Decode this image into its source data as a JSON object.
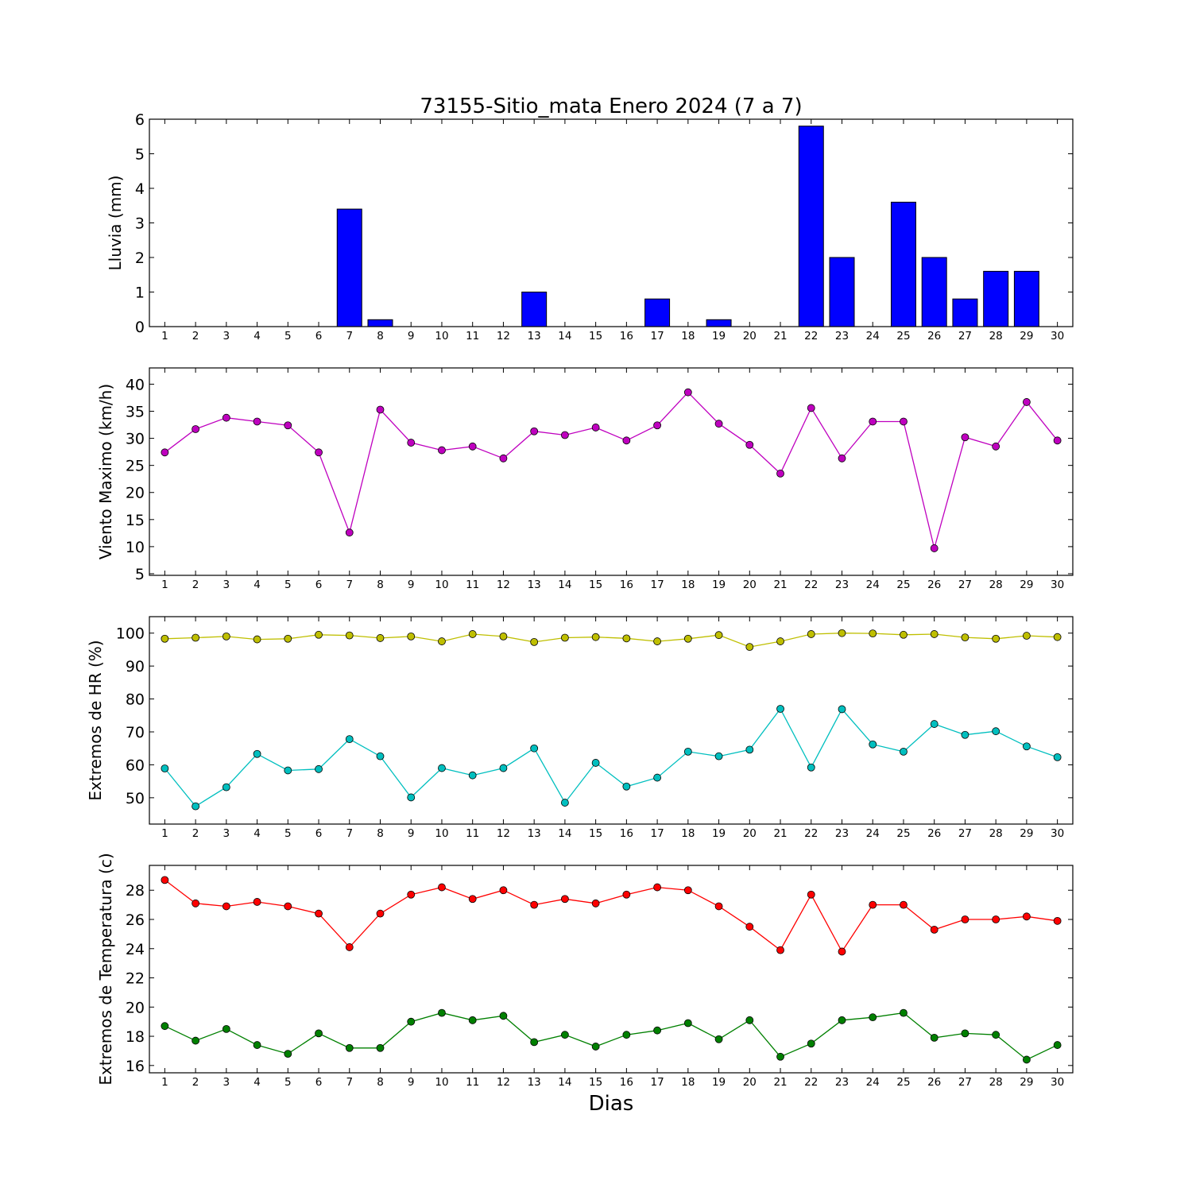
{
  "title": "73155-Sitio_mata Enero 2024  (7 a 7)",
  "xlabel": "Dias",
  "chart_data": [
    {
      "type": "bar",
      "ylabel": "Lluvia (mm)",
      "ylim": [
        0,
        6
      ],
      "yticks": [
        0,
        1,
        2,
        3,
        4,
        5,
        6
      ],
      "xlim": [
        0.5,
        30.5
      ],
      "categories": [
        "1",
        "2",
        "3",
        "4",
        "5",
        "6",
        "7",
        "8",
        "9",
        "10",
        "11",
        "12",
        "13",
        "14",
        "15",
        "16",
        "17",
        "18",
        "19",
        "20",
        "21",
        "22",
        "23",
        "24",
        "25",
        "26",
        "27",
        "28",
        "29",
        "30"
      ],
      "series": [
        {
          "color": "#0000ff",
          "values": [
            0,
            0,
            0,
            0,
            0,
            0,
            3.4,
            0.2,
            0,
            0,
            0,
            0,
            1.0,
            0,
            0,
            0,
            0.8,
            0,
            0.2,
            0,
            0,
            5.8,
            2.0,
            0,
            3.6,
            2.0,
            0.8,
            1.6,
            1.6,
            0
          ]
        }
      ]
    },
    {
      "type": "line",
      "ylabel": "Viento Maximo (km/h)",
      "ylim": [
        4.7,
        43
      ],
      "yticks": [
        5,
        10,
        15,
        20,
        25,
        30,
        35,
        40
      ],
      "xlim": [
        0.5,
        30.5
      ],
      "categories": [
        "1",
        "2",
        "3",
        "4",
        "5",
        "6",
        "7",
        "8",
        "9",
        "10",
        "11",
        "12",
        "13",
        "14",
        "15",
        "16",
        "17",
        "18",
        "19",
        "20",
        "21",
        "22",
        "23",
        "24",
        "25",
        "26",
        "27",
        "28",
        "29",
        "30"
      ],
      "series": [
        {
          "color": "#bf00bf",
          "values": [
            27.4,
            31.7,
            33.8,
            33.1,
            32.4,
            27.4,
            12.6,
            35.3,
            29.2,
            27.8,
            28.5,
            26.3,
            31.3,
            30.6,
            32.0,
            29.6,
            32.4,
            38.5,
            32.7,
            28.8,
            23.5,
            35.6,
            26.3,
            33.1,
            33.1,
            9.7,
            30.2,
            28.5,
            36.7,
            29.6
          ]
        }
      ]
    },
    {
      "type": "line",
      "ylabel": "Extremos de HR (%)",
      "ylim": [
        42,
        105
      ],
      "yticks": [
        50,
        60,
        70,
        80,
        90,
        100
      ],
      "xlim": [
        0.5,
        30.5
      ],
      "categories": [
        "1",
        "2",
        "3",
        "4",
        "5",
        "6",
        "7",
        "8",
        "9",
        "10",
        "11",
        "12",
        "13",
        "14",
        "15",
        "16",
        "17",
        "18",
        "19",
        "20",
        "21",
        "22",
        "23",
        "24",
        "25",
        "26",
        "27",
        "28",
        "29",
        "30"
      ],
      "series": [
        {
          "color": "#bfbf00",
          "values": [
            98.3,
            98.6,
            99.0,
            98.1,
            98.3,
            99.5,
            99.3,
            98.5,
            99.0,
            97.5,
            99.7,
            99.0,
            97.3,
            98.6,
            98.8,
            98.4,
            97.5,
            98.3,
            99.4,
            95.8,
            97.5,
            99.7,
            100.0,
            99.9,
            99.5,
            99.7,
            98.7,
            98.3,
            99.2,
            98.8
          ]
        },
        {
          "color": "#00bfbf",
          "values": [
            58.9,
            47.4,
            53.2,
            63.3,
            58.3,
            58.7,
            67.8,
            62.6,
            50.1,
            59.0,
            56.8,
            59.0,
            65.0,
            48.5,
            60.6,
            53.4,
            56.1,
            64.0,
            62.6,
            64.6,
            77.0,
            59.2,
            76.9,
            66.2,
            64.0,
            72.4,
            69.1,
            70.2,
            65.6,
            62.3
          ]
        }
      ]
    },
    {
      "type": "line",
      "ylabel": "Extremos de Temperatura (c)",
      "ylim": [
        15.5,
        29.7
      ],
      "yticks": [
        16,
        18,
        20,
        22,
        24,
        26,
        28
      ],
      "xlim": [
        0.5,
        30.5
      ],
      "categories": [
        "1",
        "2",
        "3",
        "4",
        "5",
        "6",
        "7",
        "8",
        "9",
        "10",
        "11",
        "12",
        "13",
        "14",
        "15",
        "16",
        "17",
        "18",
        "19",
        "20",
        "21",
        "22",
        "23",
        "24",
        "25",
        "26",
        "27",
        "28",
        "29",
        "30"
      ],
      "series": [
        {
          "color": "#ff0000",
          "values": [
            28.7,
            27.1,
            26.9,
            27.2,
            26.9,
            26.4,
            24.1,
            26.4,
            27.7,
            28.2,
            27.4,
            28.0,
            27.0,
            27.4,
            27.1,
            27.7,
            28.2,
            28.0,
            26.9,
            25.5,
            23.9,
            27.7,
            23.8,
            27.0,
            27.0,
            25.3,
            26.0,
            26.0,
            26.2,
            25.9
          ]
        },
        {
          "color": "#008000",
          "values": [
            18.7,
            17.7,
            18.5,
            17.4,
            16.8,
            18.2,
            17.2,
            17.2,
            19.0,
            19.6,
            19.1,
            19.4,
            17.6,
            18.1,
            17.3,
            18.1,
            18.4,
            18.9,
            17.8,
            19.1,
            16.6,
            17.5,
            19.1,
            19.3,
            19.6,
            17.9,
            18.2,
            18.1,
            16.4,
            17.4
          ]
        }
      ]
    }
  ]
}
